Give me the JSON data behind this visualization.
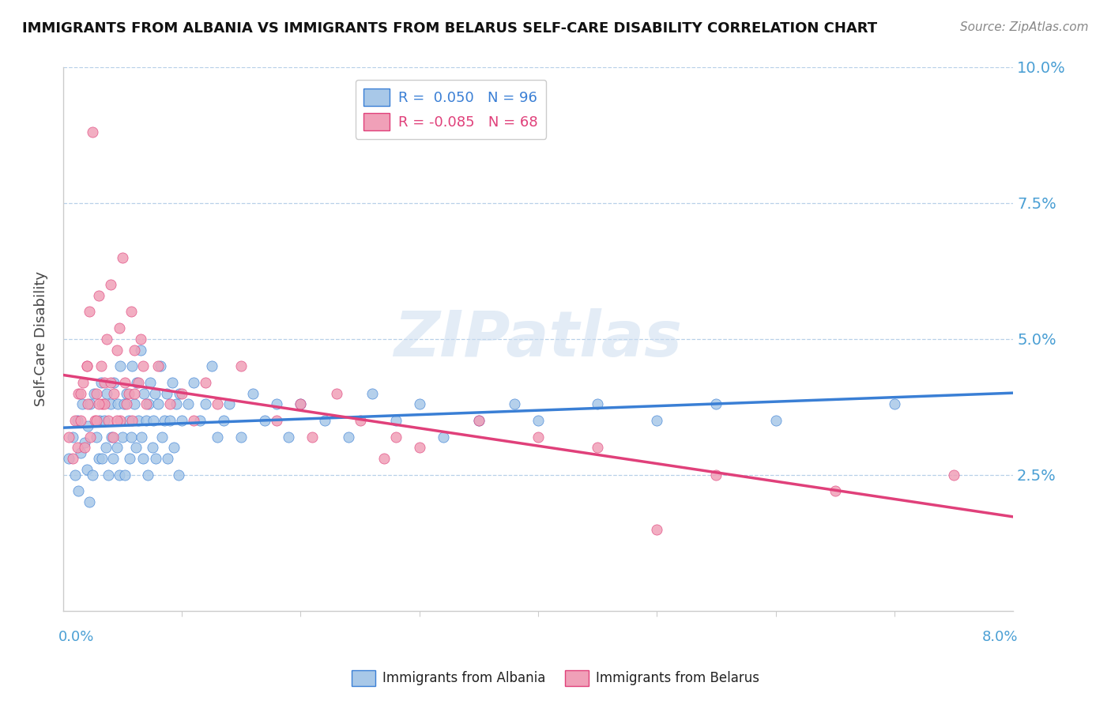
{
  "title": "IMMIGRANTS FROM ALBANIA VS IMMIGRANTS FROM BELARUS SELF-CARE DISABILITY CORRELATION CHART",
  "source": "Source: ZipAtlas.com",
  "ylabel": "Self-Care Disability",
  "xlim": [
    0.0,
    8.0
  ],
  "ylim": [
    0.0,
    10.0
  ],
  "yticks": [
    2.5,
    5.0,
    7.5,
    10.0
  ],
  "color_albania": "#a8c8e8",
  "color_belarus": "#f0a0b8",
  "color_trendline_albania": "#3a7fd5",
  "color_trendline_belarus": "#e0407a",
  "color_axis_labels": "#4a9fd4",
  "albania_x": [
    0.05,
    0.08,
    0.1,
    0.12,
    0.13,
    0.15,
    0.16,
    0.18,
    0.2,
    0.21,
    0.22,
    0.23,
    0.25,
    0.26,
    0.28,
    0.3,
    0.31,
    0.32,
    0.33,
    0.35,
    0.36,
    0.37,
    0.38,
    0.4,
    0.41,
    0.42,
    0.43,
    0.45,
    0.46,
    0.47,
    0.48,
    0.5,
    0.51,
    0.52,
    0.53,
    0.55,
    0.56,
    0.57,
    0.58,
    0.6,
    0.61,
    0.62,
    0.63,
    0.65,
    0.66,
    0.67,
    0.68,
    0.7,
    0.71,
    0.72,
    0.73,
    0.75,
    0.76,
    0.77,
    0.78,
    0.8,
    0.82,
    0.83,
    0.85,
    0.87,
    0.88,
    0.9,
    0.92,
    0.93,
    0.95,
    0.97,
    0.98,
    1.0,
    1.05,
    1.1,
    1.15,
    1.2,
    1.25,
    1.3,
    1.35,
    1.4,
    1.5,
    1.6,
    1.7,
    1.8,
    1.9,
    2.0,
    2.2,
    2.4,
    2.6,
    2.8,
    3.0,
    3.2,
    3.5,
    3.8,
    4.0,
    4.5,
    5.0,
    5.5,
    6.0,
    7.0
  ],
  "albania_y": [
    2.8,
    3.2,
    2.5,
    3.5,
    2.2,
    2.9,
    3.8,
    3.1,
    2.6,
    3.4,
    2.0,
    3.8,
    2.5,
    4.0,
    3.2,
    2.8,
    3.5,
    4.2,
    2.8,
    3.5,
    3.0,
    4.0,
    2.5,
    3.8,
    3.2,
    2.8,
    4.2,
    3.0,
    3.8,
    2.5,
    4.5,
    3.2,
    3.8,
    2.5,
    4.0,
    3.5,
    2.8,
    3.2,
    4.5,
    3.8,
    3.0,
    4.2,
    3.5,
    4.8,
    3.2,
    2.8,
    4.0,
    3.5,
    2.5,
    3.8,
    4.2,
    3.0,
    3.5,
    4.0,
    2.8,
    3.8,
    4.5,
    3.2,
    3.5,
    4.0,
    2.8,
    3.5,
    4.2,
    3.0,
    3.8,
    2.5,
    4.0,
    3.5,
    3.8,
    4.2,
    3.5,
    3.8,
    4.5,
    3.2,
    3.5,
    3.8,
    3.2,
    4.0,
    3.5,
    3.8,
    3.2,
    3.8,
    3.5,
    3.2,
    4.0,
    3.5,
    3.8,
    3.2,
    3.5,
    3.8,
    3.5,
    3.8,
    3.5,
    3.8,
    3.5,
    3.8
  ],
  "belarus_x": [
    0.05,
    0.08,
    0.1,
    0.12,
    0.13,
    0.15,
    0.17,
    0.18,
    0.2,
    0.21,
    0.22,
    0.23,
    0.25,
    0.27,
    0.28,
    0.3,
    0.32,
    0.33,
    0.35,
    0.37,
    0.38,
    0.4,
    0.42,
    0.43,
    0.45,
    0.47,
    0.48,
    0.5,
    0.52,
    0.53,
    0.55,
    0.57,
    0.58,
    0.6,
    0.63,
    0.65,
    0.67,
    0.7,
    0.8,
    0.9,
    1.0,
    1.1,
    1.2,
    1.3,
    1.5,
    1.8,
    2.0,
    2.3,
    2.5,
    2.8,
    3.0,
    3.5,
    4.0,
    4.5,
    5.0,
    5.5,
    6.5,
    7.5,
    0.28,
    0.35,
    0.4,
    0.45,
    0.6,
    2.1,
    2.7,
    0.15,
    0.2,
    0.3
  ],
  "belarus_y": [
    3.2,
    2.8,
    3.5,
    3.0,
    4.0,
    3.5,
    4.2,
    3.0,
    4.5,
    3.8,
    5.5,
    3.2,
    8.8,
    3.5,
    4.0,
    5.8,
    4.5,
    3.8,
    4.2,
    5.0,
    3.5,
    6.0,
    3.2,
    4.0,
    4.8,
    5.2,
    3.5,
    6.5,
    4.2,
    3.8,
    4.0,
    5.5,
    3.5,
    4.8,
    4.2,
    5.0,
    4.5,
    3.8,
    4.5,
    3.8,
    4.0,
    3.5,
    4.2,
    3.8,
    4.5,
    3.5,
    3.8,
    4.0,
    3.5,
    3.2,
    3.0,
    3.5,
    3.2,
    3.0,
    1.5,
    2.5,
    2.2,
    2.5,
    3.5,
    3.8,
    4.2,
    3.5,
    4.0,
    3.2,
    2.8,
    4.0,
    4.5,
    3.8
  ]
}
